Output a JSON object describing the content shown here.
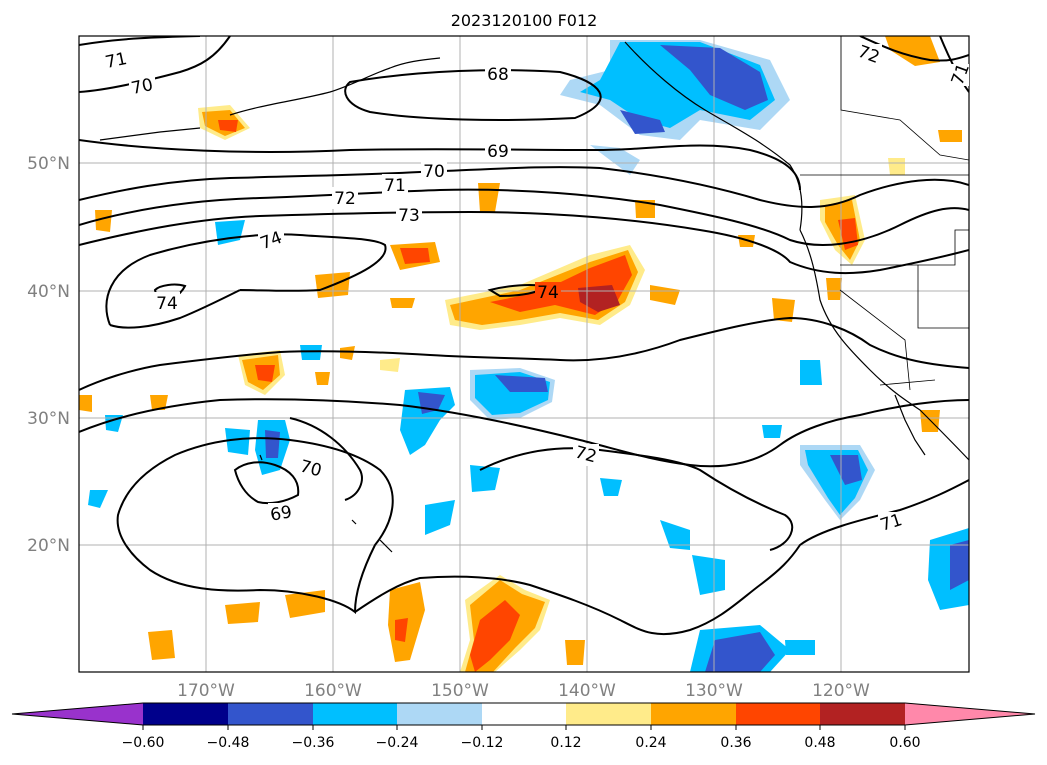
{
  "map": {
    "title": "2023120100 F012",
    "lon_labels": [
      "170°W",
      "160°W",
      "150°W",
      "140°W",
      "130°W",
      "120°W"
    ],
    "lat_labels": [
      "50°N",
      "40°N",
      "30°N",
      "20°N"
    ],
    "contour_labels": [
      {
        "text": "71"
      },
      {
        "text": "70"
      },
      {
        "text": "68"
      },
      {
        "text": "69"
      },
      {
        "text": "70"
      },
      {
        "text": "71"
      },
      {
        "text": "72"
      },
      {
        "text": "73"
      },
      {
        "text": "74"
      },
      {
        "text": "74"
      },
      {
        "text": "74"
      },
      {
        "text": "72"
      },
      {
        "text": "70"
      },
      {
        "text": "69"
      },
      {
        "text": "71"
      },
      {
        "text": "72"
      },
      {
        "text": "71"
      }
    ]
  },
  "colorbar": {
    "tick_labels": [
      "−0.60",
      "−0.48",
      "−0.36",
      "−0.24",
      "−0.12",
      "0.12",
      "0.24",
      "0.36",
      "0.48",
      "0.60"
    ],
    "colors": [
      "#9932cc",
      "#00008b",
      "#3355cc",
      "#00bfff",
      "#add8f5",
      "#ffffff",
      "#ffeb8a",
      "#ffa500",
      "#ff4500",
      "#b22222",
      "#ff88aa"
    ]
  }
}
